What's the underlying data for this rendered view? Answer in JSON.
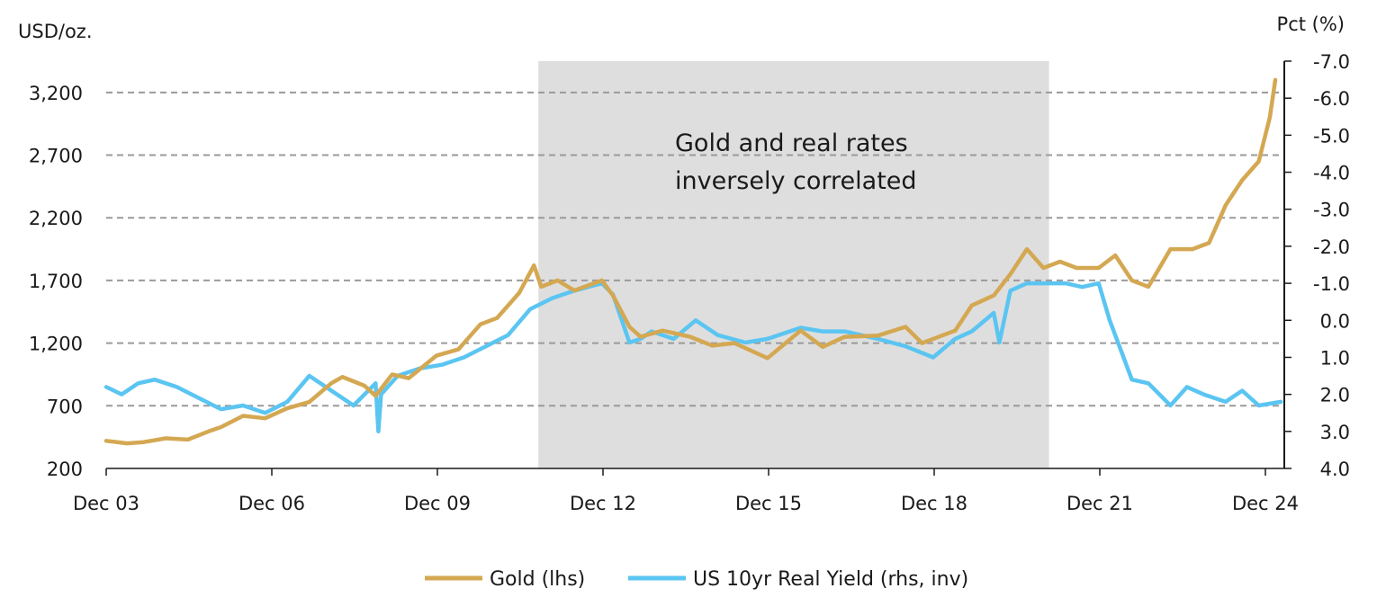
{
  "chart_data": {
    "type": "line",
    "left_axis_label": "USD/oz.",
    "right_axis_label": "Pct (%)",
    "annotation": [
      "Gold and real rates",
      "inversely correlated"
    ],
    "shaded_region": {
      "start": 2011.75,
      "end": 2021.0
    },
    "xlim": [
      2003.92,
      2025.25
    ],
    "x_ticks": [
      {
        "label": "Dec 03",
        "value": 2003.92
      },
      {
        "label": "Dec 06",
        "value": 2006.92
      },
      {
        "label": "Dec 09",
        "value": 2009.92
      },
      {
        "label": "Dec 12",
        "value": 2012.92
      },
      {
        "label": "Dec 15",
        "value": 2015.92
      },
      {
        "label": "Dec 18",
        "value": 2018.92
      },
      {
        "label": "Dec 21",
        "value": 2021.92
      },
      {
        "label": "Dec 24",
        "value": 2024.92
      }
    ],
    "left_axis": {
      "min": 200,
      "max": 3450,
      "ticks": [
        200,
        700,
        1200,
        1700,
        2200,
        2700,
        3200
      ],
      "tick_labels": [
        "200",
        "700",
        "1,200",
        "1,700",
        "2,200",
        "2,700",
        "3,200"
      ]
    },
    "right_axis": {
      "min": -7.0,
      "max": 4.0,
      "inverted": true,
      "ticks": [
        -7,
        -6,
        -5,
        -4,
        -3,
        -2,
        -1,
        0,
        1,
        2,
        3,
        4
      ],
      "tick_labels": [
        "-7.0",
        "-6.0",
        "-5.0",
        "-4.0",
        "-3.0",
        "-2.0",
        "-1.0",
        "0.0",
        "1.0",
        "2.0",
        "3.0",
        "4.0"
      ]
    },
    "grid_lines": [
      700,
      1200,
      1700,
      2200,
      2700,
      3200
    ],
    "legend": {
      "placement": "bottom-center"
    },
    "series": [
      {
        "name": "Gold (lhs)",
        "axis": "left",
        "color": "#d4a852",
        "x": [
          2003.92,
          2004.3,
          2004.6,
          2005.0,
          2005.4,
          2005.8,
          2006.0,
          2006.4,
          2006.8,
          2007.2,
          2007.6,
          2008.0,
          2008.2,
          2008.6,
          2008.8,
          2009.1,
          2009.4,
          2009.9,
          2010.3,
          2010.7,
          2011.0,
          2011.4,
          2011.67,
          2011.8,
          2012.1,
          2012.4,
          2012.9,
          2013.1,
          2013.4,
          2013.6,
          2014.0,
          2014.5,
          2014.9,
          2015.3,
          2015.9,
          2016.5,
          2016.9,
          2017.3,
          2017.9,
          2018.4,
          2018.7,
          2019.3,
          2019.6,
          2020.0,
          2020.3,
          2020.6,
          2020.9,
          2021.2,
          2021.5,
          2021.9,
          2022.2,
          2022.5,
          2022.8,
          2023.2,
          2023.6,
          2023.9,
          2024.2,
          2024.5,
          2024.8,
          2025.0,
          2025.1
        ],
        "values": [
          420,
          400,
          410,
          440,
          430,
          500,
          530,
          620,
          600,
          680,
          730,
          880,
          930,
          860,
          780,
          950,
          920,
          1100,
          1150,
          1350,
          1400,
          1600,
          1820,
          1650,
          1700,
          1620,
          1700,
          1580,
          1330,
          1250,
          1300,
          1250,
          1180,
          1200,
          1080,
          1300,
          1170,
          1250,
          1260,
          1330,
          1200,
          1300,
          1500,
          1580,
          1750,
          1950,
          1800,
          1850,
          1800,
          1800,
          1900,
          1700,
          1650,
          1950,
          1950,
          2000,
          2300,
          2500,
          2650,
          3000,
          3300
        ]
      },
      {
        "name": "US 10yr Real Yield (rhs, inv)",
        "axis": "right",
        "color": "#5bc5f2",
        "x": [
          2003.92,
          2004.2,
          2004.5,
          2004.8,
          2005.2,
          2005.6,
          2006.0,
          2006.4,
          2006.8,
          2007.2,
          2007.6,
          2008.0,
          2008.4,
          2008.8,
          2008.85,
          2008.9,
          2009.2,
          2009.6,
          2010.0,
          2010.4,
          2010.8,
          2011.2,
          2011.6,
          2012.0,
          2012.4,
          2012.9,
          2013.1,
          2013.4,
          2013.6,
          2013.8,
          2014.2,
          2014.6,
          2015.0,
          2015.5,
          2015.9,
          2016.5,
          2016.9,
          2017.3,
          2017.9,
          2018.4,
          2018.9,
          2019.3,
          2019.6,
          2020.0,
          2020.1,
          2020.3,
          2020.6,
          2020.9,
          2021.3,
          2021.6,
          2021.9,
          2022.1,
          2022.3,
          2022.5,
          2022.8,
          2023.2,
          2023.5,
          2023.8,
          2024.2,
          2024.5,
          2024.8,
          2025.2
        ],
        "values": [
          1.8,
          2.0,
          1.7,
          1.6,
          1.8,
          2.1,
          2.4,
          2.3,
          2.5,
          2.2,
          1.5,
          1.9,
          2.3,
          1.7,
          3.0,
          2.0,
          1.5,
          1.3,
          1.2,
          1.0,
          0.7,
          0.4,
          -0.3,
          -0.6,
          -0.8,
          -1.0,
          -0.7,
          0.6,
          0.5,
          0.3,
          0.5,
          0.0,
          0.4,
          0.6,
          0.5,
          0.2,
          0.3,
          0.3,
          0.5,
          0.7,
          1.0,
          0.5,
          0.3,
          -0.2,
          0.6,
          -0.8,
          -1.0,
          -1.0,
          -1.0,
          -0.9,
          -1.0,
          0.0,
          0.8,
          1.6,
          1.7,
          2.3,
          1.8,
          2.0,
          2.2,
          1.9,
          2.3,
          2.2
        ]
      }
    ]
  }
}
